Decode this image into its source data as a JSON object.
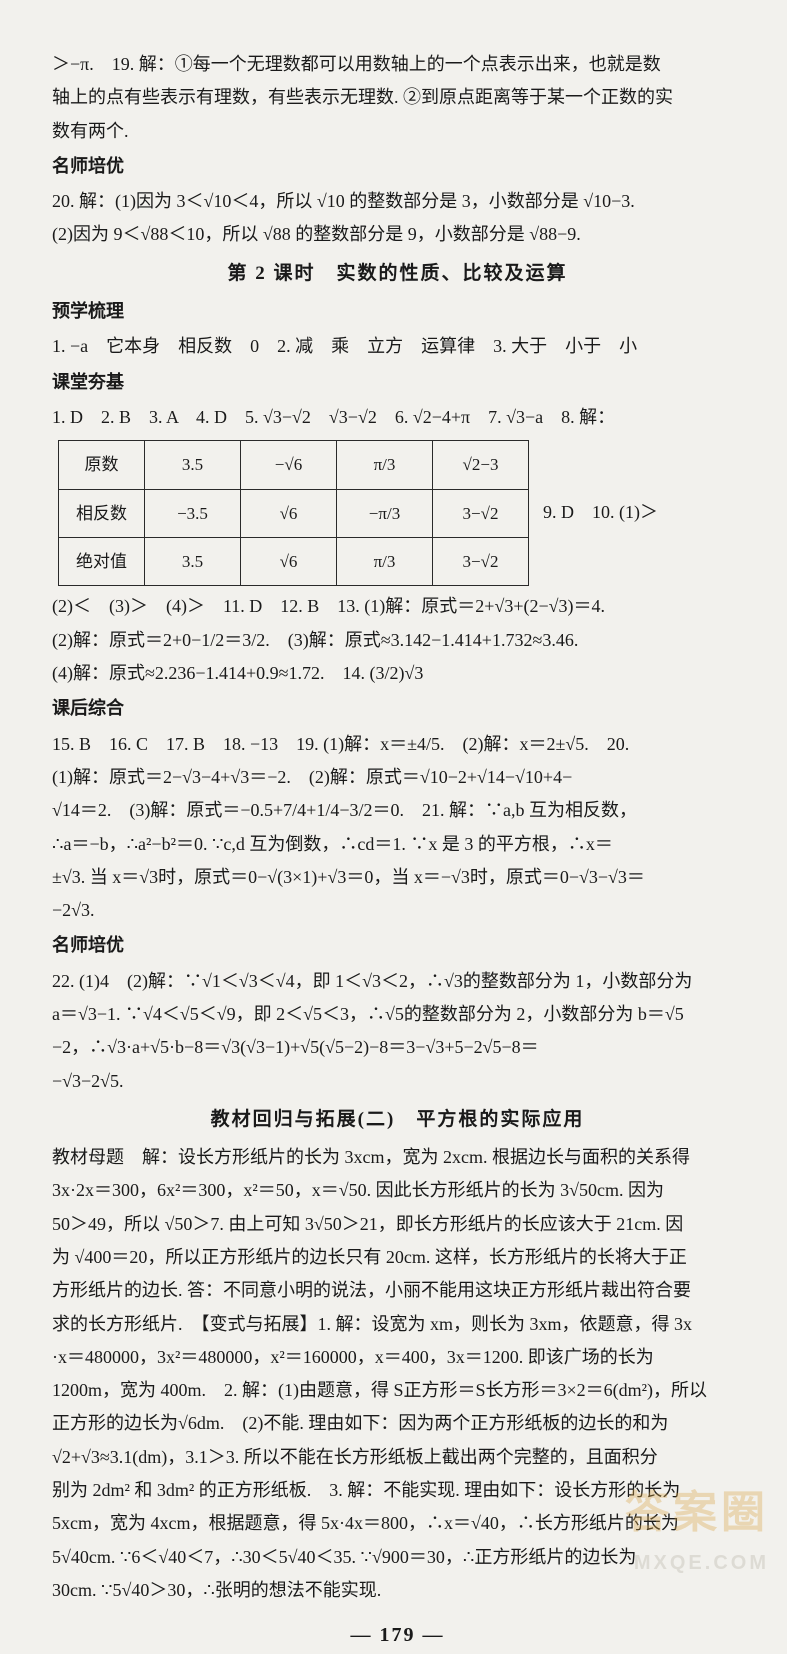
{
  "intro": {
    "l1": "＞−π.　19. 解：①每一个无理数都可以用数轴上的一个点表示出来，也就是数",
    "l2": "轴上的点有些表示有理数，有些表示无理数. ②到原点距离等于某一个正数的实",
    "l3": "数有两个."
  },
  "msp1": {
    "title": "名师培优"
  },
  "q20": {
    "l1": "20. 解：(1)因为 3＜√10＜4，所以 √10 的整数部分是 3，小数部分是 √10−3.",
    "l2": "(2)因为 9＜√88＜10，所以 √88 的整数部分是 9，小数部分是 √88−9."
  },
  "title2": "第 2 课时　实数的性质、比较及运算",
  "pre": {
    "title": "预学梳理",
    "l1": "1. −a　它本身　相反数　0　2. 减　乘　立方　运算律　3. 大于　小于　小"
  },
  "kt": {
    "title": "课堂夯基",
    "l1": "1. D　2. B　3. A　4. D　5. √3−√2　√3−√2　6. √2−4+π　7. √3−a　8. 解："
  },
  "table": {
    "rows": [
      [
        "原数",
        "3.5",
        "−√6",
        "π/3",
        "√2−3"
      ],
      [
        "相反数",
        "−3.5",
        "√6",
        "−π/3",
        "3−√2"
      ],
      [
        "绝对值",
        "3.5",
        "√6",
        "π/3",
        "3−√2"
      ]
    ],
    "after": "9. D　10. (1)＞"
  },
  "kt2": {
    "l1": "(2)＜　(3)＞　(4)＞　11. D　12. B　13. (1)解：原式＝2+√3+(2−√3)＝4.",
    "l2": "(2)解：原式＝2+0−1/2＝3/2.　(3)解：原式≈3.142−1.414+1.732≈3.46.",
    "l3": "(4)解：原式≈2.236−1.414+0.9≈1.72.　14. (3/2)√3"
  },
  "kh": {
    "title": "课后综合",
    "l1": "15. B　16. C　17. B　18. −13　19. (1)解：x＝±4/5.　(2)解：x＝2±√5.　20.",
    "l2": "(1)解：原式＝2−√3−4+√3＝−2.　(2)解：原式＝√10−2+√14−√10+4−",
    "l3": "√14＝2.　(3)解：原式＝−0.5+7/4+1/4−3/2＝0.　21. 解：∵a,b 互为相反数，",
    "l4": "∴a＝−b，∴a²−b²＝0. ∵c,d 互为倒数，∴cd＝1. ∵x 是 3 的平方根，∴x＝",
    "l5": "±√3. 当 x＝√3时，原式＝0−√(3×1)+√3＝0，当 x＝−√3时，原式＝0−√3−√3＝",
    "l6": "−2√3."
  },
  "msp2": {
    "title": "名师培优",
    "l1": "22. (1)4　(2)解：∵√1＜√3＜√4，即 1＜√3＜2，∴√3的整数部分为 1，小数部分为",
    "l2": "a＝√3−1. ∵√4＜√5＜√9，即 2＜√5＜3，∴√5的整数部分为 2，小数部分为 b＝√5",
    "l3": "−2，∴√3·a+√5·b−8＝√3(√3−1)+√5(√5−2)−8＝3−√3+5−2√5−8＝",
    "l4": "−√3−2√5."
  },
  "title3": "教材回归与拓展(二)　平方根的实际应用",
  "jc": {
    "l1": "教材母题　解：设长方形纸片的长为 3xcm，宽为 2xcm. 根据边长与面积的关系得",
    "l2": "3x·2x＝300，6x²＝300，x²＝50，x＝√50. 因此长方形纸片的长为 3√50cm. 因为",
    "l3": "50＞49，所以 √50＞7. 由上可知 3√50＞21，即长方形纸片的长应该大于 21cm. 因",
    "l4": "为 √400＝20，所以正方形纸片的边长只有 20cm. 这样，长方形纸片的长将大于正",
    "l5": "方形纸片的边长. 答：不同意小明的说法，小丽不能用这块正方形纸片裁出符合要",
    "l6": "求的长方形纸片.　【变式与拓展】1. 解：设宽为 xm，则长为 3xm，依题意，得 3x",
    "l7": "·x＝480000，3x²＝480000，x²＝160000，x＝400，3x＝1200. 即该广场的长为",
    "l8": "1200m，宽为 400m.　2. 解：(1)由题意，得 S正方形＝S长方形＝3×2＝6(dm²)，所以",
    "l9": "正方形的边长为√6dm.　(2)不能. 理由如下：因为两个正方形纸板的边长的和为",
    "l10": "√2+√3≈3.1(dm)，3.1＞3. 所以不能在长方形纸板上截出两个完整的，且面积分",
    "l11": "别为 2dm² 和 3dm² 的正方形纸板.　3. 解：不能实现. 理由如下：设长方形的长为",
    "l12": "5xcm，宽为 4xcm，根据题意，得 5x·4x＝800，∴x＝√40，∴长方形纸片的长为",
    "l13": "5√40cm. ∵6＜√40＜7，∴30＜5√40＜35. ∵√900＝30，∴正方形纸片的边长为",
    "l14": "30cm. ∵5√40＞30，∴张明的想法不能实现."
  },
  "pagenum": "— 179 —",
  "watermark": {
    "top": "答案圈",
    "bot": "MXQE.COM"
  }
}
